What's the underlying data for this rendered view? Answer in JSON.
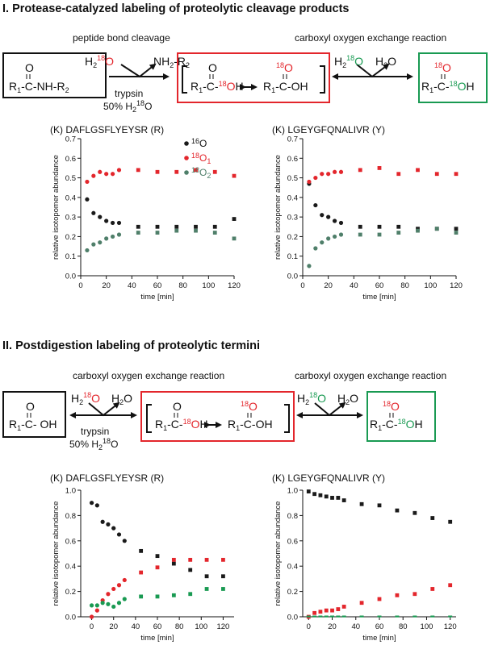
{
  "colors": {
    "black": "#1a1a1a",
    "red": "#e3262c",
    "green": "#199a52",
    "teal": "#4f7f6a"
  },
  "section1": {
    "title": "I. Protease-catalyzed labeling of proteolytic cleavage products",
    "left_label": "peptide bond cleavage",
    "right_label": "carboxyl oxygen exchange reaction",
    "enzyme": "trypsin",
    "water_pct": "50% H",
    "scheme": {
      "substrate": "R1-C-NH-R2",
      "water": "H2 18O",
      "amine": "NH2-R2",
      "intermediate_left": "R1-C-18OH",
      "intermediate_right": "R1-C-OH",
      "product": "R1-C-18OH",
      "h2o": "H2O"
    }
  },
  "section2": {
    "title": "II. Postdigestion labeling of proteolytic termini",
    "left_label": "carboxyl oxygen exchange reaction",
    "right_label": "carboxyl oxygen exchange reaction",
    "enzyme": "trypsin",
    "water_pct": "50% H"
  },
  "legend": {
    "o16": "O",
    "o18_1": "O",
    "o18_2": "O"
  },
  "chart_data": [
    {
      "type": "scatter",
      "title": "(K) DAFLGSFLYEYSR (R)",
      "xlabel": "time [min]",
      "ylabel": "relative isotopomer abundance",
      "xlim": [
        0,
        120
      ],
      "ylim": [
        0,
        0.7
      ],
      "xticks": [
        0,
        20,
        40,
        60,
        80,
        100,
        120
      ],
      "yticks": [
        0.0,
        0.1,
        0.2,
        0.3,
        0.4,
        0.5,
        0.6,
        0.7
      ],
      "series": [
        {
          "name": "16O",
          "color": "#1a1a1a",
          "x": [
            5,
            10,
            15,
            20,
            25,
            30,
            45,
            60,
            75,
            90,
            105,
            120
          ],
          "y": [
            0.39,
            0.32,
            0.3,
            0.28,
            0.27,
            0.27,
            0.25,
            0.25,
            0.25,
            0.25,
            0.25,
            0.29
          ]
        },
        {
          "name": "18O1",
          "color": "#e3262c",
          "x": [
            5,
            10,
            15,
            20,
            25,
            30,
            45,
            60,
            75,
            90,
            105,
            120
          ],
          "y": [
            0.48,
            0.51,
            0.53,
            0.52,
            0.52,
            0.54,
            0.54,
            0.53,
            0.53,
            0.54,
            0.53,
            0.51
          ]
        },
        {
          "name": "18O2",
          "color": "#4f7f6a",
          "x": [
            5,
            10,
            15,
            20,
            25,
            30,
            45,
            60,
            75,
            90,
            105,
            120
          ],
          "y": [
            0.13,
            0.16,
            0.17,
            0.19,
            0.2,
            0.21,
            0.22,
            0.22,
            0.23,
            0.23,
            0.22,
            0.19
          ]
        }
      ]
    },
    {
      "type": "scatter",
      "title": "(K) LGEYGFQNALIVR (Y)",
      "xlabel": "time [min]",
      "ylabel": "relative isotopomer abundance",
      "xlim": [
        0,
        120
      ],
      "ylim": [
        0,
        0.7
      ],
      "xticks": [
        0,
        20,
        40,
        60,
        80,
        100,
        120
      ],
      "yticks": [
        0.0,
        0.1,
        0.2,
        0.3,
        0.4,
        0.5,
        0.6,
        0.7
      ],
      "series": [
        {
          "name": "16O",
          "color": "#1a1a1a",
          "x": [
            5,
            10,
            15,
            20,
            25,
            30,
            45,
            60,
            75,
            90,
            105,
            120
          ],
          "y": [
            0.47,
            0.36,
            0.31,
            0.3,
            0.28,
            0.27,
            0.25,
            0.25,
            0.25,
            0.24,
            0.24,
            0.24
          ]
        },
        {
          "name": "18O1",
          "color": "#e3262c",
          "x": [
            5,
            10,
            15,
            20,
            25,
            30,
            45,
            60,
            75,
            90,
            105,
            120
          ],
          "y": [
            0.48,
            0.5,
            0.52,
            0.52,
            0.53,
            0.53,
            0.54,
            0.55,
            0.52,
            0.54,
            0.52,
            0.52
          ]
        },
        {
          "name": "18O2",
          "color": "#4f7f6a",
          "x": [
            5,
            10,
            15,
            20,
            25,
            30,
            45,
            60,
            75,
            90,
            105,
            120
          ],
          "y": [
            0.05,
            0.14,
            0.17,
            0.19,
            0.2,
            0.21,
            0.21,
            0.21,
            0.22,
            0.23,
            0.24,
            0.22
          ]
        }
      ]
    },
    {
      "type": "scatter",
      "title": "(K) DAFLGSFLYEYSR (R)",
      "xlabel": "time [min]",
      "ylabel": "relative isotopomer abundance",
      "xlim": [
        -10,
        130
      ],
      "ylim": [
        0,
        1.0
      ],
      "xticks": [
        0,
        20,
        40,
        60,
        80,
        100,
        120
      ],
      "yticks": [
        0,
        0.2,
        0.4,
        0.6,
        0.8,
        1.0
      ],
      "series": [
        {
          "name": "16O",
          "color": "#1a1a1a",
          "x": [
            0,
            5,
            10,
            15,
            20,
            25,
            30,
            45,
            60,
            75,
            90,
            105,
            120
          ],
          "y": [
            0.9,
            0.88,
            0.75,
            0.73,
            0.7,
            0.65,
            0.6,
            0.52,
            0.48,
            0.42,
            0.37,
            0.32,
            0.32
          ]
        },
        {
          "name": "18O1",
          "color": "#e3262c",
          "x": [
            0,
            5,
            10,
            15,
            20,
            25,
            30,
            45,
            60,
            75,
            90,
            105,
            120
          ],
          "y": [
            0.0,
            0.05,
            0.13,
            0.18,
            0.22,
            0.25,
            0.29,
            0.35,
            0.39,
            0.45,
            0.45,
            0.45,
            0.45
          ]
        },
        {
          "name": "18O2",
          "color": "#199a52",
          "x": [
            0,
            5,
            10,
            15,
            20,
            25,
            30,
            45,
            60,
            75,
            90,
            105,
            120
          ],
          "y": [
            0.09,
            0.09,
            0.11,
            0.1,
            0.08,
            0.11,
            0.14,
            0.16,
            0.16,
            0.17,
            0.18,
            0.22,
            0.22
          ]
        }
      ]
    },
    {
      "type": "scatter",
      "title": "(K) LGEYGFQNALIVR (Y)",
      "xlabel": "time [min]",
      "ylabel": "relative isotopomer abundance",
      "xlim": [
        -5,
        125
      ],
      "ylim": [
        0,
        1.0
      ],
      "xticks": [
        0,
        20,
        40,
        60,
        80,
        100,
        120
      ],
      "yticks": [
        0,
        0.2,
        0.4,
        0.6,
        0.8,
        1.0
      ],
      "series": [
        {
          "name": "16O",
          "color": "#1a1a1a",
          "x": [
            0,
            5,
            10,
            15,
            20,
            25,
            30,
            45,
            60,
            75,
            90,
            105,
            120
          ],
          "y": [
            0.99,
            0.97,
            0.96,
            0.95,
            0.94,
            0.94,
            0.92,
            0.89,
            0.88,
            0.84,
            0.82,
            0.78,
            0.75
          ]
        },
        {
          "name": "18O1",
          "color": "#e3262c",
          "x": [
            0,
            5,
            10,
            15,
            20,
            25,
            30,
            45,
            60,
            75,
            90,
            105,
            120
          ],
          "y": [
            0.0,
            0.03,
            0.04,
            0.05,
            0.05,
            0.06,
            0.08,
            0.11,
            0.14,
            0.17,
            0.18,
            0.22,
            0.25
          ]
        },
        {
          "name": "18O2",
          "color": "#199a52",
          "x": [
            0,
            5,
            10,
            15,
            20,
            25,
            30,
            45,
            60,
            75,
            90,
            105,
            120
          ],
          "y": [
            0.0,
            0.0,
            0.0,
            0.0,
            0.0,
            0.0,
            0.0,
            0.0,
            0.0,
            0.0,
            0.0,
            0.0,
            0.0
          ]
        }
      ]
    }
  ]
}
